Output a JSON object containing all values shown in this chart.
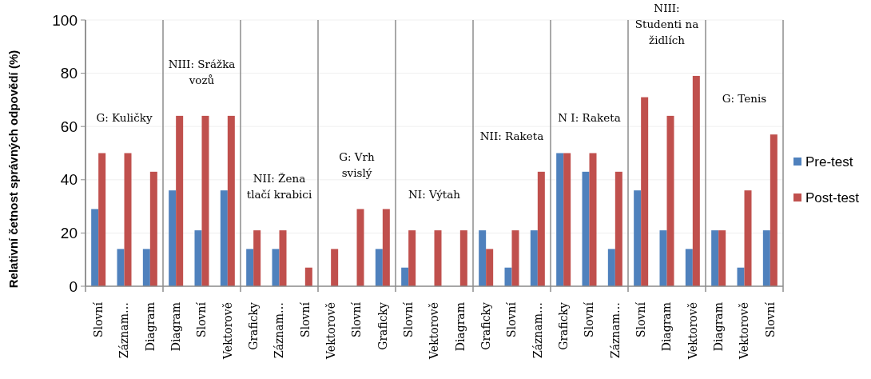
{
  "chart_data": {
    "type": "bar",
    "ylabel": "Relativní četnost správných odpovědí (%)",
    "categories": [
      "Slovní",
      "Záznam…",
      "Diagram",
      "Diagram",
      "Slovní",
      "Vektorově",
      "Graficky",
      "Záznam…",
      "Slovní",
      "Vektorově",
      "Slovní",
      "Graficky",
      "Slovní",
      "Vektorově",
      "Diagram",
      "Graficky",
      "Slovní",
      "Záznam…",
      "Graficky",
      "Slovní",
      "Záznam…",
      "Slovní",
      "Diagram",
      "Vektorově",
      "Diagram",
      "Vektorově",
      "Slovní"
    ],
    "series": [
      {
        "name": "Pre-test",
        "color": "#4f81bd",
        "values": [
          29,
          14,
          14,
          36,
          21,
          36,
          14,
          14,
          0,
          0,
          0,
          14,
          7,
          0,
          0,
          21,
          7,
          21,
          50,
          43,
          14,
          36,
          21,
          14,
          21,
          7,
          21
        ]
      },
      {
        "name": "Post-test",
        "color": "#c0504d",
        "values": [
          50,
          50,
          43,
          64,
          64,
          64,
          21,
          21,
          7,
          14,
          29,
          29,
          21,
          21,
          21,
          14,
          21,
          43,
          50,
          50,
          43,
          71,
          64,
          79,
          21,
          36,
          57
        ]
      }
    ],
    "ylim": [
      0,
      100
    ],
    "yticks": [
      0,
      20,
      40,
      60,
      80,
      100
    ],
    "grid": "y",
    "legend": "right",
    "annotations": [
      "G: Kuličky",
      "NIII: Srážka\nvozů",
      "NII: Žena\ntlačí krabici",
      "G: Vrh\nsvislý",
      "NI: Výtah",
      "NII: Raketa",
      "N I: Raketa",
      "NIII:\nStudenti na\nžidlích",
      "G: Tenis"
    ]
  }
}
